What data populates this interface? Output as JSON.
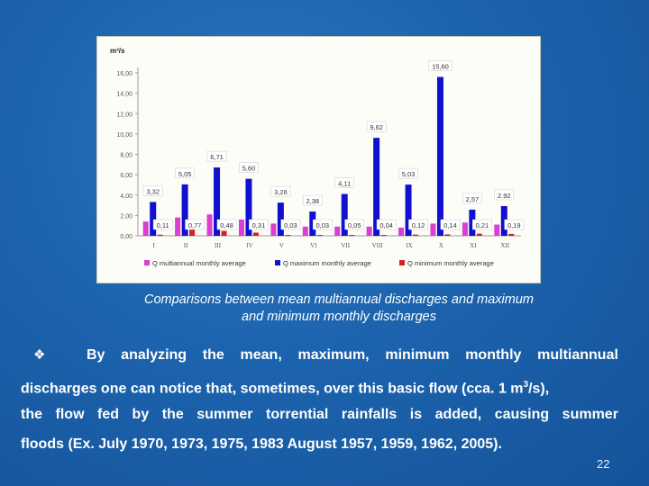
{
  "chart_data": {
    "type": "bar",
    "ylabel": "m³/s",
    "categories": [
      "I",
      "II",
      "III",
      "IV",
      "V",
      "VI",
      "VII",
      "VIII",
      "IX",
      "X",
      "XI",
      "XII"
    ],
    "ylim": [
      0,
      16
    ],
    "yticks": [
      "0,00",
      "2,00",
      "4,00",
      "6,00",
      "8,00",
      "10,00",
      "12,00",
      "14,00",
      "16,00"
    ],
    "series": [
      {
        "name": "Q multiannual monthly average",
        "color": "#d93fd0",
        "values": [
          1.4,
          1.8,
          2.1,
          1.6,
          1.2,
          0.9,
          0.9,
          0.9,
          0.8,
          1.2,
          1.3,
          1.1
        ],
        "labels": null
      },
      {
        "name": "Q maximum monthly average",
        "color": "#1010d0",
        "values": [
          3.32,
          5.05,
          6.71,
          5.6,
          3.26,
          2.38,
          4.11,
          9.62,
          5.03,
          15.6,
          2.57,
          2.92
        ],
        "labels": [
          "3,32",
          "5,05",
          "6,71",
          "5,60",
          "3,26",
          "2,38",
          "4,11",
          "9,62",
          "5,03",
          "15,60",
          "2,57",
          "2.92"
        ]
      },
      {
        "name": "Q minimum monthly average",
        "color": "#d42020",
        "values": [
          0.11,
          0.77,
          0.48,
          0.31,
          0.03,
          0.03,
          0.05,
          0.04,
          0.12,
          0.14,
          0.21,
          0.19
        ],
        "labels": [
          "0,11",
          "0,77",
          "0,48",
          "0,31",
          "0,03",
          "0,03",
          "0,05",
          "0,04",
          "0,12",
          "0,14",
          "0,21",
          "0,19"
        ]
      }
    ],
    "legend_position": "bottom",
    "grid": false
  },
  "caption": {
    "line1": "Comparisons between mean multiannual discharges and maximum",
    "line2": "and  minimum monthly discharges"
  },
  "body": {
    "line1_words": [
      "By",
      "analyzing",
      "the",
      "mean,",
      "maximum,",
      "minimum",
      "monthly",
      "multiannual"
    ],
    "line2_pre": "discharges one can notice that, sometimes, over this basic flow (cca. 1 m",
    "line2_sup": "3",
    "line2_post": "/s),",
    "line3_words": [
      "the",
      "flow",
      "fed",
      "by",
      "the",
      "summer",
      "torrential",
      "rainfalls",
      "is",
      "added,",
      "causing",
      "summer"
    ],
    "line4": "floods (Ex. July 1970, 1973, 1975, 1983 August 1957, 1959, 1962, 2005)."
  },
  "page_number": "22",
  "bullet_icon": "diamond-bullet-icon"
}
